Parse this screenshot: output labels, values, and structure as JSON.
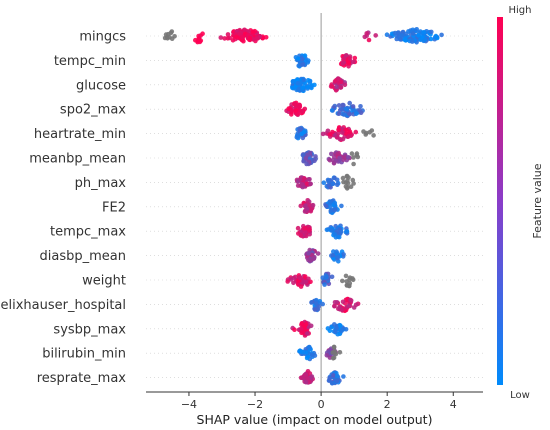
{
  "chart_data": {
    "type": "scatter",
    "subtype": "shap-beeswarm",
    "title": "",
    "xlabel": "SHAP value (impact on model output)",
    "ylabel": "",
    "xlim": [
      -5.3,
      4.9
    ],
    "xticks": [
      -4,
      -2,
      0,
      2,
      4
    ],
    "tick_labels": [
      "−4",
      "−2",
      "0",
      "2",
      "4"
    ],
    "grid": false,
    "zero_line": true,
    "colorbar": {
      "high_label": "High",
      "low_label": "Low",
      "title": "Feature value",
      "high_color": "#ff0052",
      "low_color": "#008bfb",
      "missing_color": "#777777"
    },
    "features": [
      {
        "name": "mingcs",
        "clusters": [
          {
            "center": -2.3,
            "spread": 1.1,
            "count": 95,
            "value": 0.95
          },
          {
            "center": -3.7,
            "spread": 0.35,
            "count": 10,
            "value": 0.95
          },
          {
            "center": -4.6,
            "spread": 0.35,
            "count": 10,
            "value": -1
          },
          {
            "center": 2.9,
            "spread": 1.2,
            "count": 95,
            "value": 0.1
          },
          {
            "center": 1.5,
            "spread": 0.3,
            "count": 6,
            "value": 0.8
          }
        ]
      },
      {
        "name": "tempc_min",
        "clusters": [
          {
            "center": -0.6,
            "spread": 0.35,
            "count": 32,
            "value": 0.1
          },
          {
            "center": 0.8,
            "spread": 0.45,
            "count": 34,
            "value": 0.9
          }
        ]
      },
      {
        "name": "glucose",
        "clusters": [
          {
            "center": -0.6,
            "spread": 0.6,
            "count": 60,
            "value": 0.05
          },
          {
            "center": 0.5,
            "spread": 0.35,
            "count": 30,
            "value": 0.75
          }
        ]
      },
      {
        "name": "spo2_max",
        "clusters": [
          {
            "center": -0.8,
            "spread": 0.5,
            "count": 40,
            "value": 0.95
          },
          {
            "center": 0.8,
            "spread": 0.9,
            "count": 50,
            "value": 0.2
          }
        ]
      },
      {
        "name": "heartrate_min",
        "clusters": [
          {
            "center": -0.6,
            "spread": 0.3,
            "count": 30,
            "value": 0.15
          },
          {
            "center": 0.6,
            "spread": 0.8,
            "count": 45,
            "value": 0.85
          },
          {
            "center": 1.4,
            "spread": 0.3,
            "count": 6,
            "value": -1
          }
        ]
      },
      {
        "name": "meanbp_mean",
        "clusters": [
          {
            "center": -0.4,
            "spread": 0.35,
            "count": 40,
            "value": 0.35
          },
          {
            "center": 0.5,
            "spread": 0.5,
            "count": 30,
            "value": 0.6
          },
          {
            "center": 1.0,
            "spread": 0.3,
            "count": 6,
            "value": -1
          }
        ]
      },
      {
        "name": "ph_max",
        "clusters": [
          {
            "center": -0.5,
            "spread": 0.4,
            "count": 35,
            "value": 0.75
          },
          {
            "center": 0.3,
            "spread": 0.3,
            "count": 20,
            "value": 0.2
          },
          {
            "center": 0.8,
            "spread": 0.4,
            "count": 14,
            "value": -1
          }
        ]
      },
      {
        "name": "FE2",
        "clusters": [
          {
            "center": -0.4,
            "spread": 0.3,
            "count": 30,
            "value": 0.8
          },
          {
            "center": 0.35,
            "spread": 0.4,
            "count": 30,
            "value": 0.15
          }
        ]
      },
      {
        "name": "tempc_max",
        "clusters": [
          {
            "center": -0.5,
            "spread": 0.35,
            "count": 35,
            "value": 0.85
          },
          {
            "center": 0.5,
            "spread": 0.55,
            "count": 35,
            "value": 0.1
          }
        ]
      },
      {
        "name": "diasbp_mean",
        "clusters": [
          {
            "center": -0.3,
            "spread": 0.3,
            "count": 35,
            "value": 0.55
          },
          {
            "center": 0.5,
            "spread": 0.35,
            "count": 20,
            "value": 0.1
          }
        ]
      },
      {
        "name": "weight",
        "clusters": [
          {
            "center": -0.6,
            "spread": 0.55,
            "count": 40,
            "value": 0.85
          },
          {
            "center": 0.2,
            "spread": 0.3,
            "count": 20,
            "value": 0.25
          },
          {
            "center": 0.85,
            "spread": 0.35,
            "count": 12,
            "value": -1
          }
        ]
      },
      {
        "name": "elixhauser_hospital",
        "clusters": [
          {
            "center": -0.15,
            "spread": 0.25,
            "count": 22,
            "value": 0.15
          },
          {
            "center": 0.7,
            "spread": 0.55,
            "count": 36,
            "value": 0.85
          }
        ]
      },
      {
        "name": "sysbp_max",
        "clusters": [
          {
            "center": -0.5,
            "spread": 0.45,
            "count": 40,
            "value": 0.85
          },
          {
            "center": 0.5,
            "spread": 0.45,
            "count": 30,
            "value": 0.1
          }
        ]
      },
      {
        "name": "bilirubin_min",
        "clusters": [
          {
            "center": -0.4,
            "spread": 0.4,
            "count": 30,
            "value": 0.1
          },
          {
            "center": 0.3,
            "spread": 0.2,
            "count": 15,
            "value": 0.55
          },
          {
            "center": 0.4,
            "spread": 0.2,
            "count": 8,
            "value": -1
          }
        ]
      },
      {
        "name": "resprate_max",
        "clusters": [
          {
            "center": -0.4,
            "spread": 0.3,
            "count": 35,
            "value": 0.8
          },
          {
            "center": 0.4,
            "spread": 0.4,
            "count": 30,
            "value": 0.2
          }
        ]
      }
    ]
  }
}
